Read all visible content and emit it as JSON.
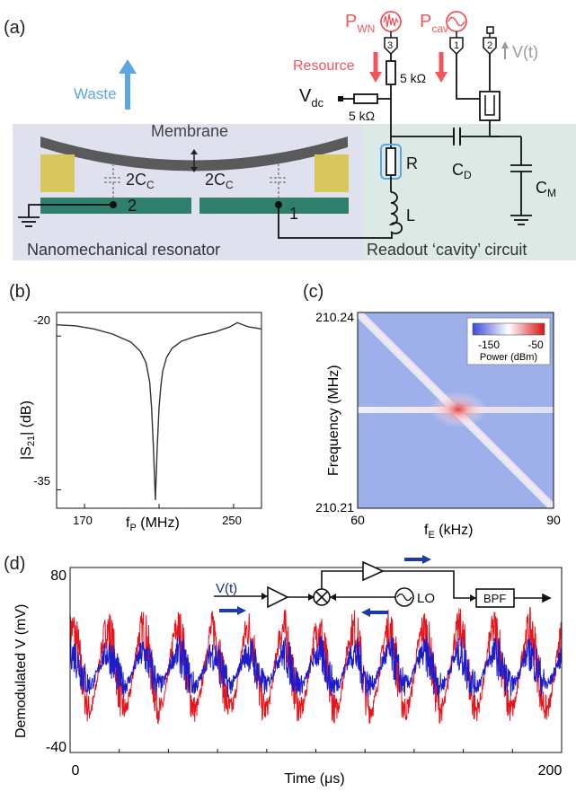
{
  "panels": {
    "a": "(a)",
    "b": "(b)",
    "c": "(c)",
    "d": "(d)"
  },
  "a": {
    "pwn_main": "P",
    "pwn_sub": "WN",
    "pcav_main": "P",
    "pcav_sub": "cav",
    "port3": "3",
    "port1": "1",
    "port2": "2",
    "vt": "V(t)",
    "resource": "Resource",
    "waste": "Waste",
    "res_top": "5 kΩ",
    "vdc_main": "V",
    "vdc_sub": "dc",
    "res_left": "5 kΩ",
    "membrane": "Membrane",
    "cc_main": "2C",
    "cc_sub": "C",
    "node2": "2",
    "node1": "1",
    "r": "R",
    "l": "L",
    "cd_main": "C",
    "cd_sub": "D",
    "cm_main": "C",
    "cm_sub": "M",
    "nano_label": "Nanomechanical resonator",
    "cavity_label": "Readout ‘cavity’ circuit",
    "colors": {
      "red": "#f2545b",
      "blue": "#5aa7e6",
      "grey": "#9a9a9a",
      "left_bg": "#dfe1ef",
      "right_bg": "#dde9e4",
      "electrode": "#2f7f6b",
      "pad": "#d8c75c",
      "membrane": "#555555"
    }
  },
  "chart_data": [
    {
      "type": "line",
      "panel": "b",
      "xlabel_main": "f",
      "xlabel_sub": "P",
      "xlabel_unit": " (MHz)",
      "ylabel_main": "|S",
      "ylabel_sub": "21",
      "ylabel_unit": "| (dB)",
      "xticks": [
        "170",
        "250"
      ],
      "yticks": [
        "-20",
        "-35"
      ],
      "xlim": [
        155,
        265
      ],
      "ylim": [
        -36.8,
        -17.7
      ],
      "series": [
        {
          "x": [
            155,
            165,
            175,
            185,
            195,
            200,
            203,
            205,
            206,
            207,
            208,
            209,
            210,
            211,
            212,
            214,
            217,
            222,
            230,
            240,
            248,
            252,
            258,
            265
          ],
          "y": [
            -18.9,
            -19.0,
            -19.3,
            -19.8,
            -20.6,
            -21.5,
            -22.6,
            -24.5,
            -27.0,
            -31.0,
            -36.0,
            -31.0,
            -27.0,
            -24.8,
            -23.4,
            -22.1,
            -21.2,
            -20.5,
            -20.0,
            -19.6,
            -19.1,
            -18.7,
            -19.1,
            -19.3
          ]
        }
      ]
    },
    {
      "type": "heatmap",
      "panel": "c",
      "xlabel_main": "f",
      "xlabel_sub": "E",
      "xlabel_unit": " (kHz)",
      "ylabel": "Frequency (MHz)",
      "xticks": [
        "60",
        "90"
      ],
      "yticks": [
        "210.24",
        "210.21"
      ],
      "xlim": [
        60,
        90
      ],
      "ylim": [
        210.21,
        210.24
      ],
      "colorbar": {
        "ticks": [
          "-150",
          "-50"
        ],
        "label": "Power (dBm)",
        "range": [
          -160,
          -40
        ]
      },
      "features": {
        "diagonal": "210.24 at 60 kHz to 210.21 at 90 kHz",
        "horizontal_line_mhz": 210.2265,
        "peak": [
          75,
          210.2265
        ]
      }
    },
    {
      "type": "line",
      "panel": "d",
      "xlabel": "Time (μs)",
      "ylabel": "Demodulated V (mV)",
      "xticks": [
        "0",
        "200"
      ],
      "yticks": [
        "80",
        "-40"
      ],
      "xlim": [
        0,
        200
      ],
      "ylim": [
        -40,
        80
      ],
      "series": [
        {
          "color": "red",
          "period_us": 14.3,
          "mean_mv": 14,
          "amplitude_mv": 26
        },
        {
          "color": "blue",
          "period_us": 14.3,
          "mean_mv": 14,
          "amplitude_mv": 10
        }
      ],
      "inset": {
        "input": "V(t)",
        "lo": "LO",
        "bpf": "BPF"
      }
    }
  ]
}
